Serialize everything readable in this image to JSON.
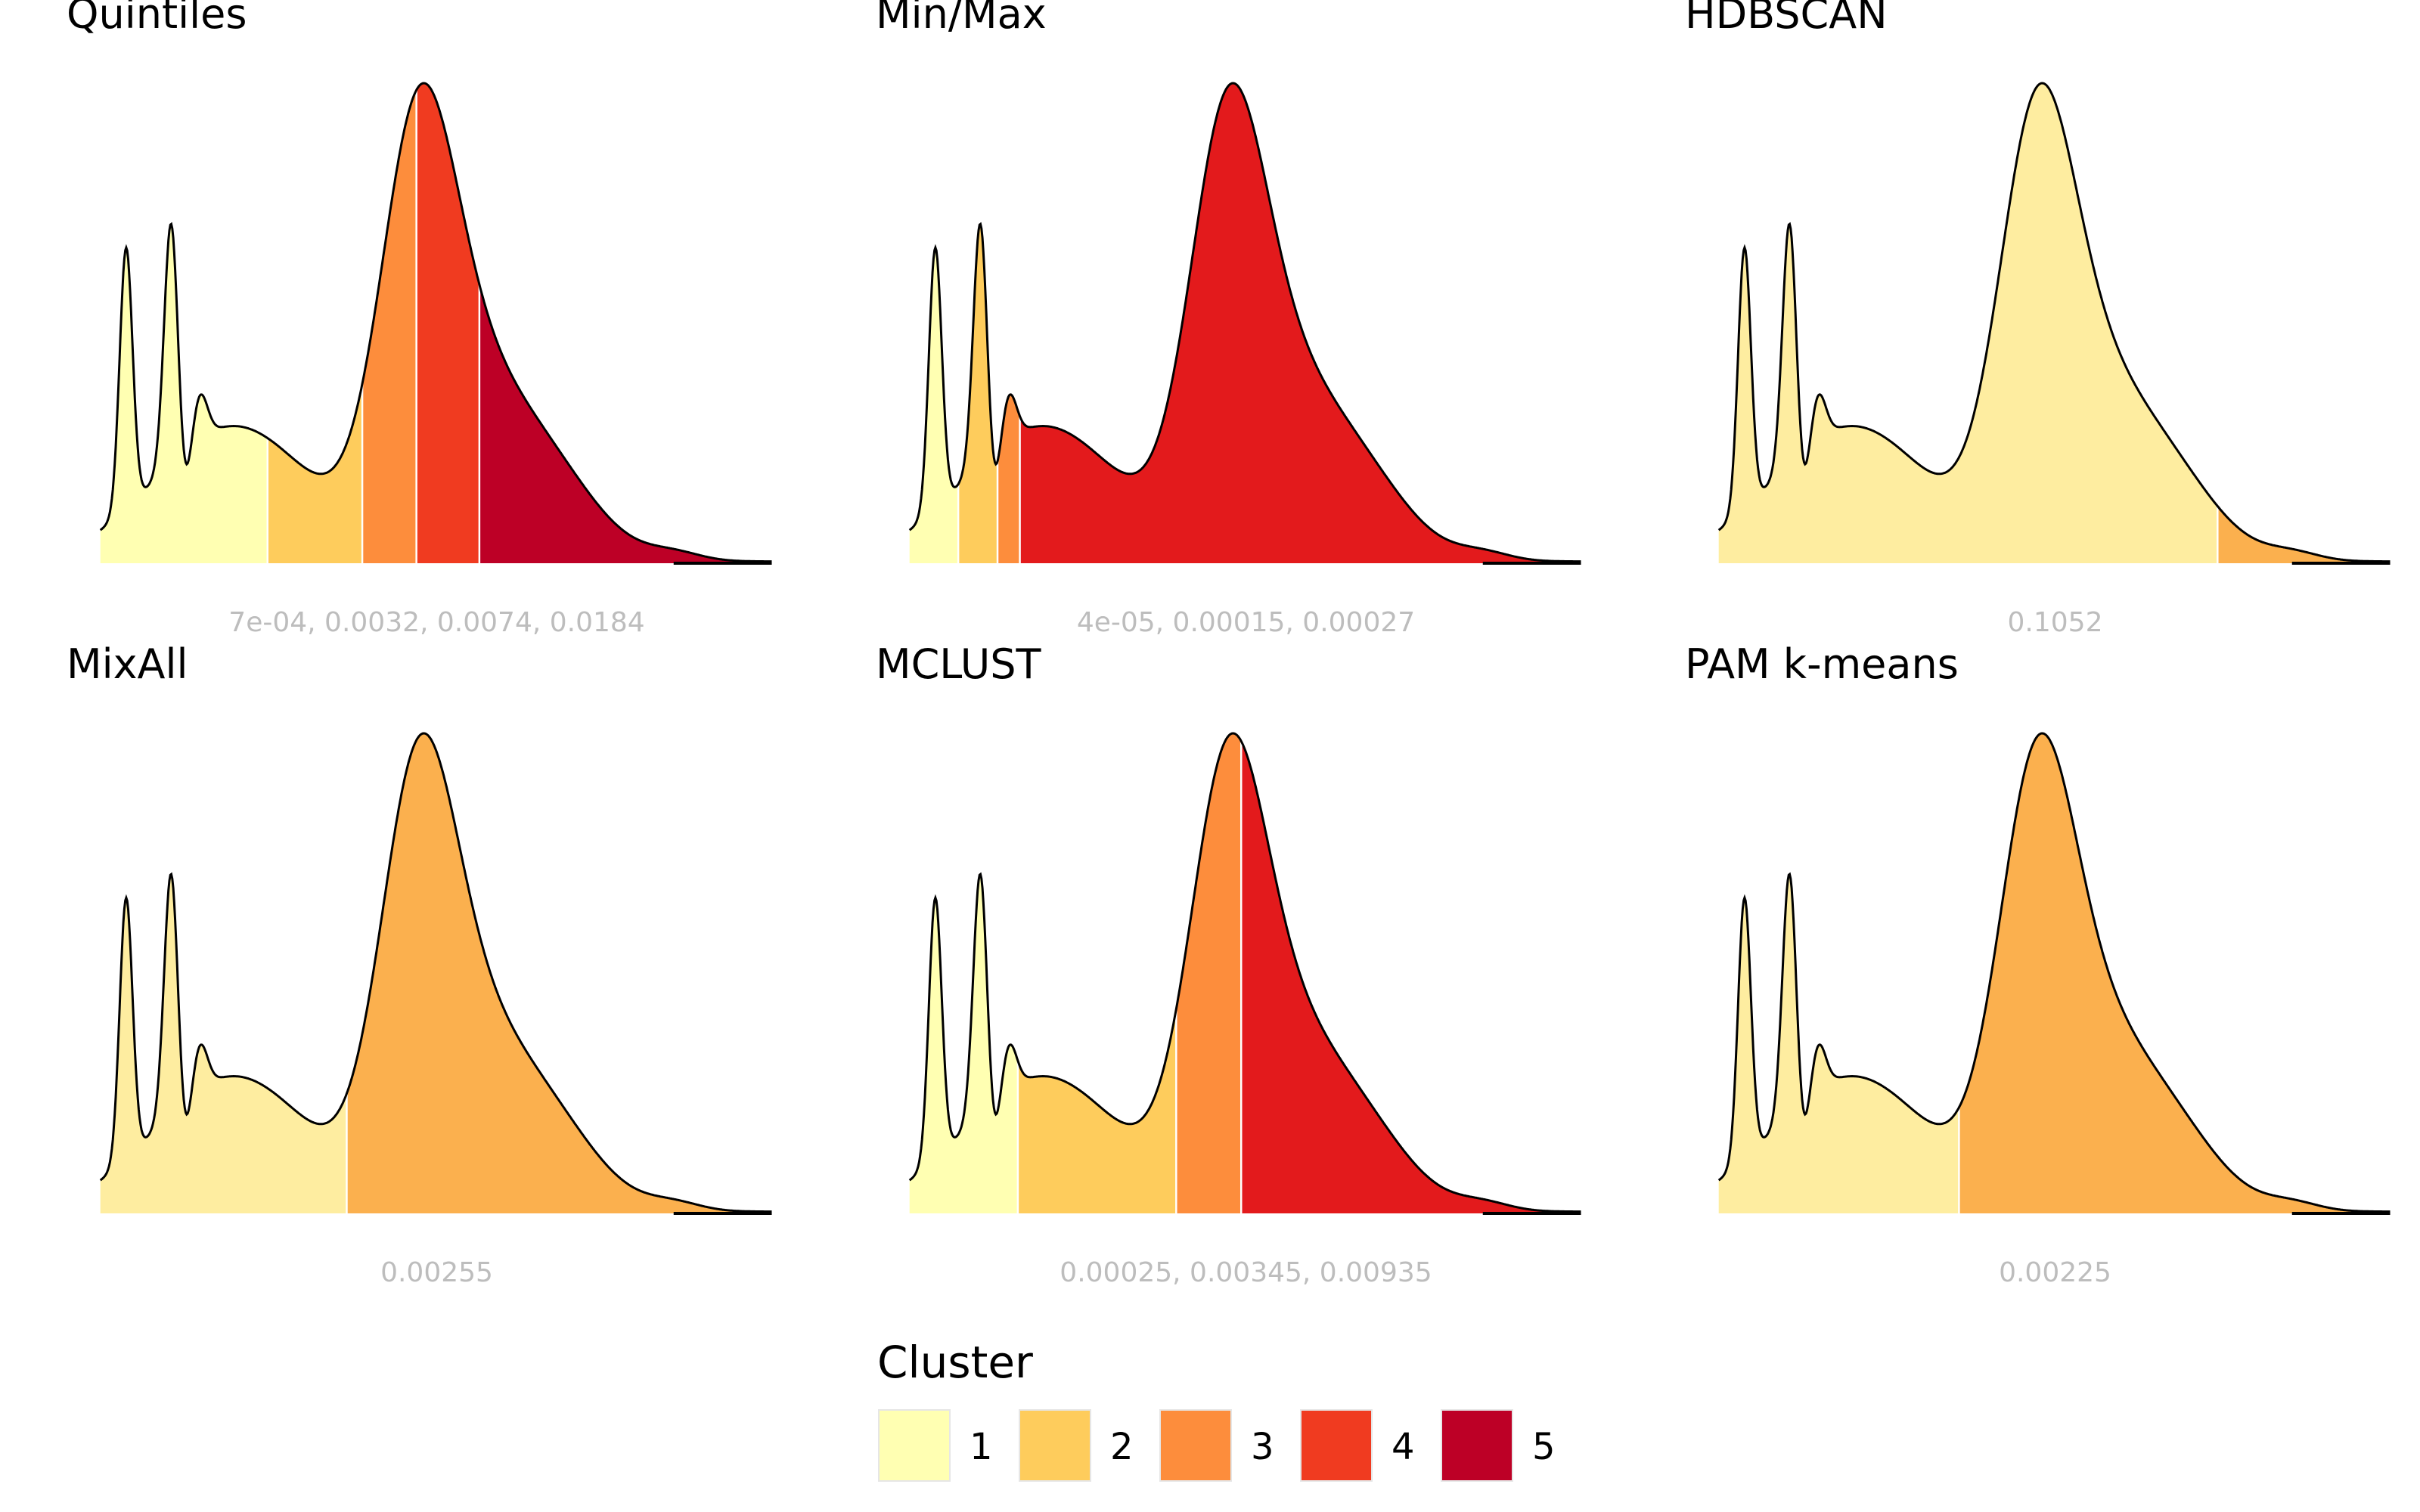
{
  "chart_data": {
    "type": "area",
    "curve_peaks": {
      "peaks": [
        {
          "x": 0.041,
          "h": 0.58,
          "w": 0.0095
        },
        {
          "x": 0.108,
          "h": 0.56,
          "w": 0.0105
        },
        {
          "x": 0.15,
          "h": 0.1,
          "w": 0.011
        },
        {
          "x": 0.2,
          "h": 0.3,
          "w": 0.115
        },
        {
          "x": 0.47,
          "h": 0.82,
          "w": 0.055
        },
        {
          "x": 0.54,
          "h": 0.31,
          "w": 0.07
        },
        {
          "x": 0.65,
          "h": 0.22,
          "w": 0.08
        },
        {
          "x": 0.85,
          "h": 0.018,
          "w": 0.04
        }
      ],
      "trough_dip": {
        "x": 0.125,
        "depth": 0.13,
        "w": 0.01
      },
      "start_x": 0.003,
      "end_x": 0.995,
      "tail_level": 0.004
    },
    "legend": {
      "title": "Cluster",
      "placement": "bottom-center",
      "items": [
        {
          "label": "1",
          "color": "#FFFFB2"
        },
        {
          "label": "2",
          "color": "#FECC5C"
        },
        {
          "label": "3",
          "color": "#FD8D3C"
        },
        {
          "label": "4",
          "color": "#F03B20"
        },
        {
          "label": "5",
          "color": "#BD0026"
        }
      ]
    },
    "panels": [
      {
        "title": "Quintiles",
        "breaks_label": "7e-04, 0.0032, 0.0074, 0.0184",
        "segments": [
          {
            "to": 0.25,
            "color": "#FFFFB2"
          },
          {
            "to": 0.39,
            "color": "#FECC5C"
          },
          {
            "to": 0.47,
            "color": "#FD8D3C"
          },
          {
            "to": 0.563,
            "color": "#F03B20"
          },
          {
            "to": 1.0,
            "color": "#BD0026"
          }
        ]
      },
      {
        "title": "Min/Max",
        "breaks_label": "4e-05, 0.00015, 0.00027",
        "segments": [
          {
            "to": 0.075,
            "color": "#FFFFB2"
          },
          {
            "to": 0.133,
            "color": "#FECC5C"
          },
          {
            "to": 0.166,
            "color": "#FD8D3C"
          },
          {
            "to": 1.0,
            "color": "#E31A1C"
          }
        ]
      },
      {
        "title": "HDBSCAN",
        "breaks_label": "0.1052",
        "segments": [
          {
            "to": 0.74,
            "color": "#FEEDA0"
          },
          {
            "to": 1.0,
            "color": "#FBB04E"
          }
        ]
      },
      {
        "title": "MixAll",
        "breaks_label": "0.00255",
        "segments": [
          {
            "to": 0.367,
            "color": "#FEEDA0"
          },
          {
            "to": 1.0,
            "color": "#FBB04E"
          }
        ]
      },
      {
        "title": "MCLUST",
        "breaks_label": "0.00025, 0.00345, 0.00935",
        "segments": [
          {
            "to": 0.163,
            "color": "#FFFFB2"
          },
          {
            "to": 0.397,
            "color": "#FECC5C"
          },
          {
            "to": 0.493,
            "color": "#FD8D3C"
          },
          {
            "to": 1.0,
            "color": "#E31A1C"
          }
        ]
      },
      {
        "title": "PAM k-means",
        "breaks_label": "0.00225",
        "segments": [
          {
            "to": 0.358,
            "color": "#FEEDA0"
          },
          {
            "to": 1.0,
            "color": "#FBB04E"
          }
        ]
      }
    ]
  }
}
